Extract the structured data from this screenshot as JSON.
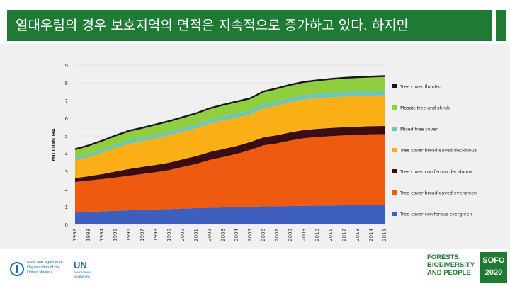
{
  "header": {
    "title": "열대우림의 경우 보호지역의 면적은 지속적으로 증가하고 있다. 하지만"
  },
  "footer": {
    "fao_text_lines": [
      "Food and Agriculture",
      "Organization of the",
      "United Nations"
    ],
    "unep_mark": "UN",
    "unep_text_lines": [
      "environment",
      "programme"
    ],
    "report_lines": [
      "FORESTS,",
      "BIODIVERSITY",
      "AND PEOPLE"
    ],
    "sofo_lines": [
      "SOFO",
      "2020"
    ]
  },
  "chart_data": {
    "type": "area",
    "stacked": true,
    "xlabel": "YEAR",
    "ylabel": "MILLION HA",
    "ylim": [
      0,
      9
    ],
    "yticks": [
      0,
      1,
      2,
      3,
      4,
      5,
      6,
      7,
      8,
      9
    ],
    "x": [
      1992,
      1993,
      1994,
      1995,
      1996,
      1997,
      1998,
      1999,
      2000,
      2001,
      2002,
      2003,
      2004,
      2005,
      2006,
      2007,
      2008,
      2009,
      2010,
      2011,
      2012,
      2013,
      2014,
      2015
    ],
    "legend_position": "right",
    "series": [
      {
        "name": "Tree cover coniferous evergreen",
        "color": "#3f5fbf",
        "values": [
          0.7,
          0.72,
          0.74,
          0.77,
          0.8,
          0.82,
          0.85,
          0.87,
          0.9,
          0.92,
          0.94,
          0.96,
          0.98,
          1.0,
          1.02,
          1.03,
          1.04,
          1.05,
          1.06,
          1.07,
          1.08,
          1.09,
          1.1,
          1.1
        ]
      },
      {
        "name": "Tree cover broadleaved evergreen",
        "color": "#ee5a0f",
        "values": [
          1.7,
          1.76,
          1.82,
          1.88,
          1.95,
          2.03,
          2.1,
          2.2,
          2.35,
          2.5,
          2.7,
          2.85,
          3.0,
          3.2,
          3.45,
          3.55,
          3.7,
          3.82,
          3.88,
          3.92,
          3.95,
          3.97,
          3.99,
          4.0
        ]
      },
      {
        "name": "Tree cover coniferous deciduous",
        "color": "#3a0d12",
        "values": [
          0.22,
          0.24,
          0.28,
          0.34,
          0.38,
          0.4,
          0.41,
          0.42,
          0.43,
          0.44,
          0.45,
          0.45,
          0.45,
          0.45,
          0.45,
          0.46,
          0.46,
          0.46,
          0.46,
          0.46,
          0.46,
          0.46,
          0.46,
          0.46
        ]
      },
      {
        "name": "Tree cover broadleaved deciduous",
        "color": "#fbaf17",
        "values": [
          1.0,
          1.08,
          1.2,
          1.33,
          1.42,
          1.45,
          1.5,
          1.55,
          1.55,
          1.58,
          1.6,
          1.62,
          1.6,
          1.55,
          1.63,
          1.68,
          1.7,
          1.72,
          1.72,
          1.73,
          1.73,
          1.73,
          1.73,
          1.73
        ]
      },
      {
        "name": "Mixed tree cover",
        "color": "#6fc7b3",
        "values": [
          0.18,
          0.19,
          0.2,
          0.2,
          0.21,
          0.21,
          0.22,
          0.22,
          0.23,
          0.23,
          0.24,
          0.24,
          0.25,
          0.25,
          0.25,
          0.26,
          0.26,
          0.26,
          0.27,
          0.27,
          0.27,
          0.27,
          0.27,
          0.28
        ]
      },
      {
        "name": "Mosaic tree and shrub",
        "color": "#8fce3f",
        "values": [
          0.4,
          0.42,
          0.44,
          0.45,
          0.48,
          0.5,
          0.52,
          0.53,
          0.55,
          0.56,
          0.58,
          0.59,
          0.61,
          0.62,
          0.66,
          0.66,
          0.68,
          0.69,
          0.7,
          0.72,
          0.74,
          0.75,
          0.75,
          0.76
        ]
      },
      {
        "name": "Tree cover flooded",
        "color": "#161616",
        "values": [
          0.1,
          0.1,
          0.1,
          0.1,
          0.1,
          0.1,
          0.1,
          0.1,
          0.1,
          0.1,
          0.1,
          0.1,
          0.1,
          0.1,
          0.1,
          0.1,
          0.1,
          0.1,
          0.1,
          0.1,
          0.1,
          0.1,
          0.1,
          0.1
        ]
      }
    ]
  }
}
